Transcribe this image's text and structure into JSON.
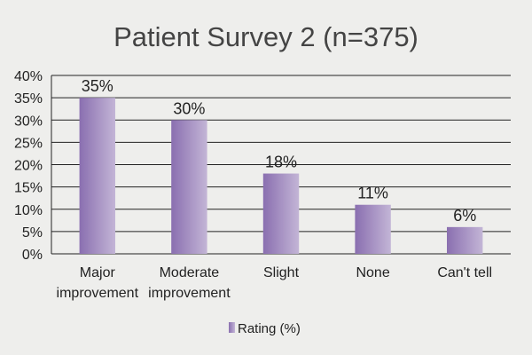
{
  "chart_data": {
    "type": "bar",
    "title": "Patient Survey 2 (n=375)",
    "categories": [
      [
        "Major",
        "improvement"
      ],
      [
        "Moderate",
        "improvement"
      ],
      [
        "Slight"
      ],
      [
        "None"
      ],
      [
        "Can't tell"
      ]
    ],
    "values": [
      35,
      30,
      18,
      11,
      6
    ],
    "data_labels": [
      "35%",
      "30%",
      "18%",
      "11%",
      "6%"
    ],
    "y_ticks": [
      "0%",
      "5%",
      "10%",
      "15%",
      "20%",
      "25%",
      "30%",
      "35%",
      "40%"
    ],
    "ylim": [
      0,
      40
    ],
    "xlabel": "",
    "ylabel": "",
    "grid": true,
    "legend": {
      "position": "bottom",
      "entries": [
        "Rating (%)"
      ]
    },
    "series": [
      {
        "name": "Rating (%)",
        "values": [
          35,
          30,
          18,
          11,
          6
        ]
      }
    ],
    "colors": {
      "bar_dark": "#8a6fb0",
      "bar_light": "#c3b5d6",
      "grid": "#222222"
    }
  }
}
